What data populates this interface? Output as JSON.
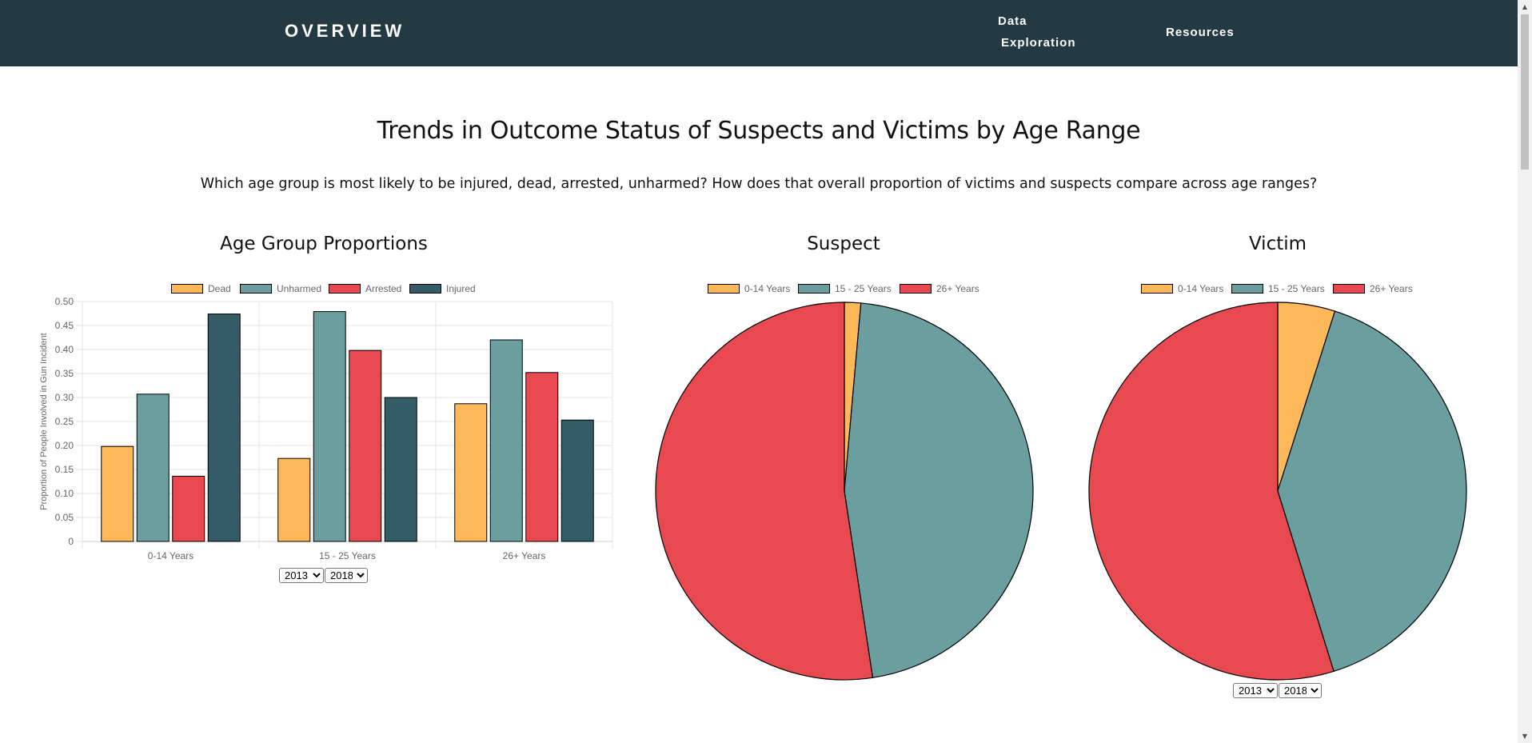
{
  "nav": {
    "brand": "OVERVIEW",
    "data_exploration_line1": "Data",
    "data_exploration_line2": "Exploration",
    "resources": "Resources"
  },
  "page": {
    "title": "Trends in Outcome Status of Suspects and Victims by Age Range",
    "subtitle": "Which age group is most likely to be injured, dead, arrested, unharmed? How does that overall proportion of victims and suspects compare across age ranges?"
  },
  "colors": {
    "navbar": "#233a42",
    "dead": "#fdb85a",
    "unharmed": "#6b9e9f",
    "arrested": "#e84951",
    "injured": "#335c67"
  },
  "chart_data": [
    {
      "type": "bar",
      "title": "Age Group Proportions",
      "categories": [
        "0-14 Years",
        "15 - 25 Years",
        "26+ Years"
      ],
      "series": [
        {
          "name": "Dead",
          "color": "#fdb85a",
          "values": [
            0.198,
            0.173,
            0.287
          ]
        },
        {
          "name": "Unharmed",
          "color": "#6b9e9f",
          "values": [
            0.307,
            0.479,
            0.42
          ]
        },
        {
          "name": "Arrested",
          "color": "#e84951",
          "values": [
            0.136,
            0.398,
            0.352
          ]
        },
        {
          "name": "Injured",
          "color": "#335c67",
          "values": [
            0.474,
            0.3,
            0.253
          ]
        }
      ],
      "ylabel": "Proportion of People Involved in Gun Incident",
      "xlabel": "",
      "ylim": [
        0,
        0.5
      ],
      "yticks": [
        "0",
        "0.05",
        "0.10",
        "0.15",
        "0.20",
        "0.25",
        "0.30",
        "0.35",
        "0.40",
        "0.45",
        "0.50"
      ],
      "grid": true,
      "legend": "top",
      "year_from": "2013",
      "year_to": "2018"
    },
    {
      "type": "pie",
      "title": "Suspect",
      "labels": [
        "0-14 Years",
        "15 - 25 Years",
        "26+ Years"
      ],
      "colors": [
        "#fdb85a",
        "#6b9e9f",
        "#e84951"
      ],
      "values": [
        1.4,
        46.2,
        52.4
      ],
      "legend": "top"
    },
    {
      "type": "pie",
      "title": "Victim",
      "labels": [
        "0-14 Years",
        "15 - 25 Years",
        "26+ Years"
      ],
      "colors": [
        "#fdb85a",
        "#6b9e9f",
        "#e84951"
      ],
      "values": [
        4.9,
        40.3,
        54.8
      ],
      "legend": "top",
      "year_from": "2013",
      "year_to": "2018"
    }
  ]
}
